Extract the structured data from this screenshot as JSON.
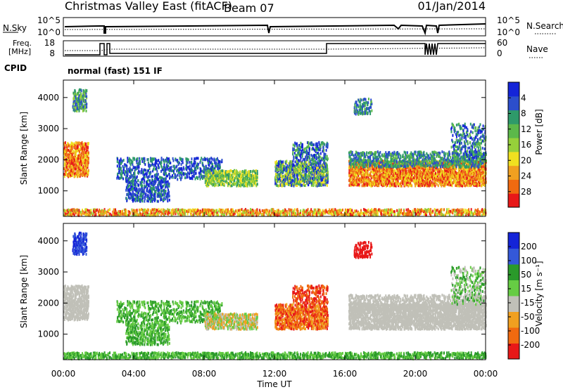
{
  "header": {
    "station": "Christmas Valley East (fitACF)",
    "beam": "Beam 07",
    "date": "01/Jan/2014"
  },
  "sky_panel": {
    "left_label": "N.Sky",
    "left_ticks": [
      "10^5",
      "10^0"
    ],
    "right_label": "N.Search",
    "right_ticks": [
      "10^5",
      "10^0"
    ]
  },
  "freq_panel": {
    "left_label_line1": "Freq.",
    "left_label_line2": "[MHz]",
    "left_ticks": [
      "18",
      "8"
    ],
    "right_label": "Nave",
    "right_ticks": [
      "60",
      "0"
    ]
  },
  "cpid": {
    "label": "CPID",
    "value": "normal (fast) 151 IF"
  },
  "chart_data": [
    {
      "type": "heatmap",
      "name": "power",
      "ylabel": "Slant Range [km]",
      "ylim": [
        180,
        4560
      ],
      "yticks": [
        "1000",
        "2000",
        "3000",
        "4000"
      ],
      "colorbar": {
        "label": "Power [dB]",
        "ticks": [
          "4",
          "8",
          "12",
          "16",
          "20",
          "24",
          "28"
        ],
        "colors": [
          "#1424d8",
          "#2c4ecc",
          "#2e9a6a",
          "#5cb84a",
          "#96d03a",
          "#f0e020",
          "#f0a020",
          "#f06a10",
          "#e81818"
        ]
      }
    },
    {
      "type": "heatmap",
      "name": "velocity",
      "ylabel": "Slant Range [km]",
      "ylim": [
        180,
        4560
      ],
      "yticks": [
        "1000",
        "2000",
        "3000",
        "4000"
      ],
      "xlabel": "Time UT",
      "xticks": [
        "00:00",
        "04:00",
        "08:00",
        "12:00",
        "16:00",
        "20:00",
        "00:00"
      ],
      "colorbar": {
        "label": "Velocity [m s⁻¹]",
        "ticks": [
          "200",
          "100",
          "50",
          "15",
          "-15",
          "-50",
          "-100",
          "-200"
        ],
        "colors": [
          "#1424d8",
          "#3458d8",
          "#2a9a2a",
          "#66cc44",
          "#c0c0b8",
          "#f0a020",
          "#f06a10",
          "#e81818"
        ]
      }
    }
  ]
}
